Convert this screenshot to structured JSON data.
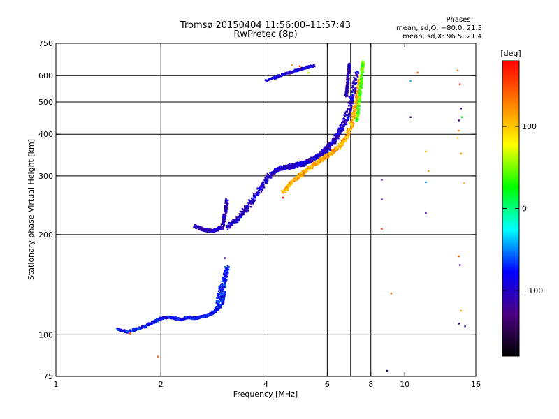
{
  "chart_data": {
    "type": "scatter",
    "title": "Tromsø 20150404 11:56:00–11:57:43",
    "subtitle": "RwPretec (8p)",
    "xlabel": "Frequency [MHz]",
    "ylabel": "Stationary phase Virtual Height [km]",
    "x_scale": "log2",
    "y_scale": "log",
    "xlim": [
      1,
      16
    ],
    "ylim": [
      75,
      750
    ],
    "x_ticks": [
      1,
      2,
      4,
      6,
      8,
      10,
      16
    ],
    "x_tick_labels": [
      "1",
      "2",
      "4",
      "6",
      "8",
      "10",
      "16"
    ],
    "x_grid": [
      2,
      4,
      6,
      7,
      8
    ],
    "y_ticks": [
      75,
      100,
      200,
      300,
      400,
      500,
      600,
      750
    ],
    "y_tick_labels": [
      "75",
      "100",
      "200",
      "300",
      "400",
      "500",
      "600",
      "750"
    ],
    "y_grid": [
      100,
      200,
      300,
      400,
      500,
      600
    ],
    "grid": true,
    "phase_stats": {
      "header": "Phases",
      "line_o": "mean, sd,O: −80.0, 21.3",
      "line_x": "mean, sd,X: 96.5, 21.4"
    },
    "colorbar": {
      "label": "[deg]",
      "range": [
        -180,
        180
      ],
      "ticks": [
        100,
        0,
        -100
      ],
      "tick_labels": [
        "100",
        "0",
        "−100"
      ],
      "colors": [
        "#000000",
        "#4b0082",
        "#0000ff",
        "#00ffff",
        "#00ff00",
        "#ffff00",
        "#ff8000",
        "#ff0000"
      ]
    },
    "traces": [
      {
        "name": "",
        "color_phase": -80,
        "x": [
          1.5,
          1.6,
          1.7,
          1.8,
          1.9,
          2.0,
          2.1,
          2.2,
          2.3,
          2.4,
          2.5,
          2.6,
          2.7,
          2.8,
          2.9,
          3.0,
          3.05
        ],
        "y": [
          104,
          102,
          104,
          106,
          109,
          112,
          113,
          112,
          111,
          113,
          112,
          113,
          114,
          116,
          119,
          124,
          135
        ],
        "spread": 0.015
      },
      {
        "name": "",
        "color_phase": -75,
        "x": [
          2.9,
          2.95,
          3.0,
          3.05,
          3.1
        ],
        "y": [
          120,
          132,
          140,
          148,
          160
        ],
        "spread": 0.03
      },
      {
        "name": "",
        "color_phase": -105,
        "x": [
          2.5,
          2.6,
          2.7,
          2.8,
          2.9,
          3.0,
          3.05,
          3.1
        ],
        "y": [
          212,
          208,
          206,
          205,
          207,
          210,
          230,
          255
        ],
        "spread": 0.02
      },
      {
        "name": "",
        "color_phase": -100,
        "x": [
          3.1,
          3.3,
          3.5,
          3.7,
          3.9,
          4.1,
          4.3,
          4.5,
          4.7,
          4.9,
          5.1,
          5.3,
          5.5,
          5.7,
          5.9,
          6.1,
          6.3,
          6.5,
          6.7,
          6.9,
          7.1,
          7.3
        ],
        "y": [
          210,
          222,
          238,
          258,
          280,
          300,
          312,
          318,
          320,
          323,
          326,
          332,
          338,
          346,
          356,
          368,
          385,
          405,
          430,
          470,
          530,
          620
        ],
        "spread": 0.03
      },
      {
        "name": "",
        "color_phase": -110,
        "x": [
          6.8,
          6.85,
          6.9,
          6.95
        ],
        "y": [
          520,
          560,
          610,
          650
        ],
        "spread": 0.015
      },
      {
        "name": "",
        "color_phase": 110,
        "x": [
          4.5,
          4.7,
          5.0,
          5.3,
          5.6,
          5.9,
          6.2,
          6.5,
          6.8,
          7.0,
          7.2,
          7.35,
          7.5
        ],
        "y": [
          268,
          285,
          300,
          315,
          328,
          340,
          352,
          368,
          390,
          420,
          470,
          530,
          600
        ],
        "spread": 0.025
      },
      {
        "name": "",
        "color_phase": 40,
        "x": [
          7.3,
          7.4,
          7.5,
          7.55,
          7.6
        ],
        "y": [
          440,
          500,
          560,
          620,
          660
        ],
        "spread": 0.015
      },
      {
        "name": "",
        "color_phase": -95,
        "x": [
          4.0,
          4.3,
          4.6,
          4.9,
          5.2,
          5.5
        ],
        "y": [
          578,
          595,
          610,
          622,
          633,
          642
        ],
        "spread": 0.015
      }
    ],
    "isolated_points": [
      {
        "x": 1.63,
        "y": 101,
        "phase": 150
      },
      {
        "x": 1.96,
        "y": 86,
        "phase": 140
      },
      {
        "x": 3.05,
        "y": 170,
        "phase": -120
      },
      {
        "x": 4.48,
        "y": 258,
        "phase": 170
      },
      {
        "x": 4.75,
        "y": 645,
        "phase": 120
      },
      {
        "x": 5.0,
        "y": 640,
        "phase": 150
      },
      {
        "x": 5.3,
        "y": 612,
        "phase": 60
      },
      {
        "x": 8.6,
        "y": 292,
        "phase": -120
      },
      {
        "x": 8.6,
        "y": 255,
        "phase": -120
      },
      {
        "x": 8.6,
        "y": 208,
        "phase": 170
      },
      {
        "x": 8.9,
        "y": 78,
        "phase": -120
      },
      {
        "x": 9.15,
        "y": 133,
        "phase": 140
      },
      {
        "x": 10.4,
        "y": 578,
        "phase": -40
      },
      {
        "x": 10.4,
        "y": 450,
        "phase": -130
      },
      {
        "x": 10.9,
        "y": 612,
        "phase": 140
      },
      {
        "x": 11.5,
        "y": 355,
        "phase": 100
      },
      {
        "x": 11.7,
        "y": 310,
        "phase": 120
      },
      {
        "x": 11.5,
        "y": 287,
        "phase": -50
      },
      {
        "x": 11.5,
        "y": 232,
        "phase": -120
      },
      {
        "x": 14.2,
        "y": 622,
        "phase": 140
      },
      {
        "x": 14.4,
        "y": 565,
        "phase": 170
      },
      {
        "x": 14.5,
        "y": 478,
        "phase": -120
      },
      {
        "x": 14.3,
        "y": 440,
        "phase": -120
      },
      {
        "x": 14.6,
        "y": 450,
        "phase": 20
      },
      {
        "x": 14.3,
        "y": 410,
        "phase": 120
      },
      {
        "x": 14.2,
        "y": 390,
        "phase": 100
      },
      {
        "x": 14.5,
        "y": 350,
        "phase": 120
      },
      {
        "x": 14.8,
        "y": 285,
        "phase": 110
      },
      {
        "x": 14.3,
        "y": 172,
        "phase": 140
      },
      {
        "x": 14.4,
        "y": 162,
        "phase": -120
      },
      {
        "x": 14.5,
        "y": 118,
        "phase": 110
      },
      {
        "x": 14.3,
        "y": 108,
        "phase": -120
      },
      {
        "x": 14.9,
        "y": 106,
        "phase": -120
      }
    ]
  }
}
